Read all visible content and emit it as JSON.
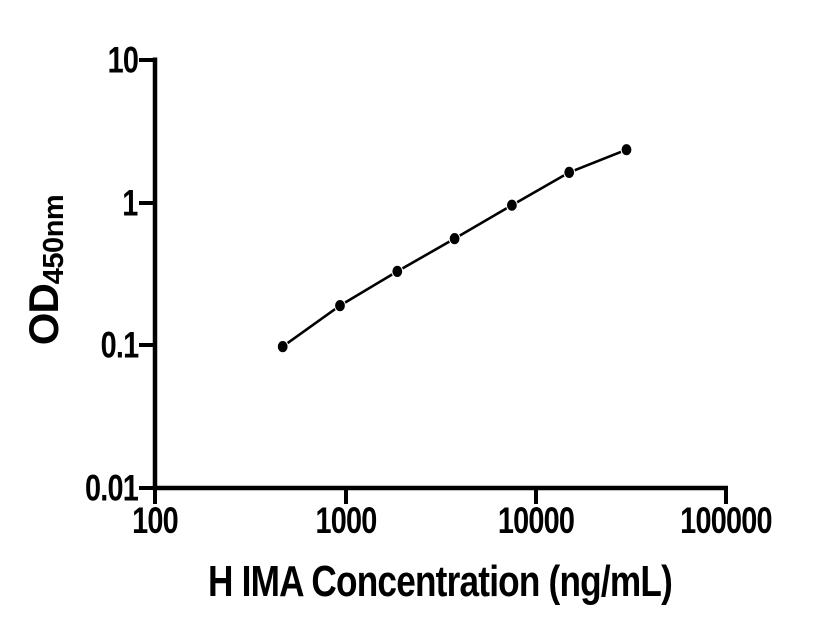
{
  "chart_data": {
    "type": "line",
    "xlabel": "H IMA Concentration (ng/mL)",
    "ylabel": "OD",
    "ylabel_subscript": "450nm",
    "x_scale": "log",
    "y_scale": "log",
    "xlim": [
      100,
      100000
    ],
    "ylim": [
      0.01,
      10
    ],
    "x_tick_labels": [
      "100",
      "1000",
      "10000",
      "100000"
    ],
    "y_tick_labels": [
      "10",
      "1",
      "0.1",
      "0.01"
    ],
    "grid": false,
    "legend": "none",
    "background": "#ffffff",
    "axis_color": "#000000",
    "series": [
      {
        "x": [
          468.75,
          937.5,
          1875,
          3750,
          7500,
          15000,
          30000
        ],
        "y": [
          0.098,
          0.19,
          0.33,
          0.56,
          0.96,
          1.63,
          2.35
        ],
        "marker": "filled-circle",
        "color": "#000000"
      }
    ]
  }
}
